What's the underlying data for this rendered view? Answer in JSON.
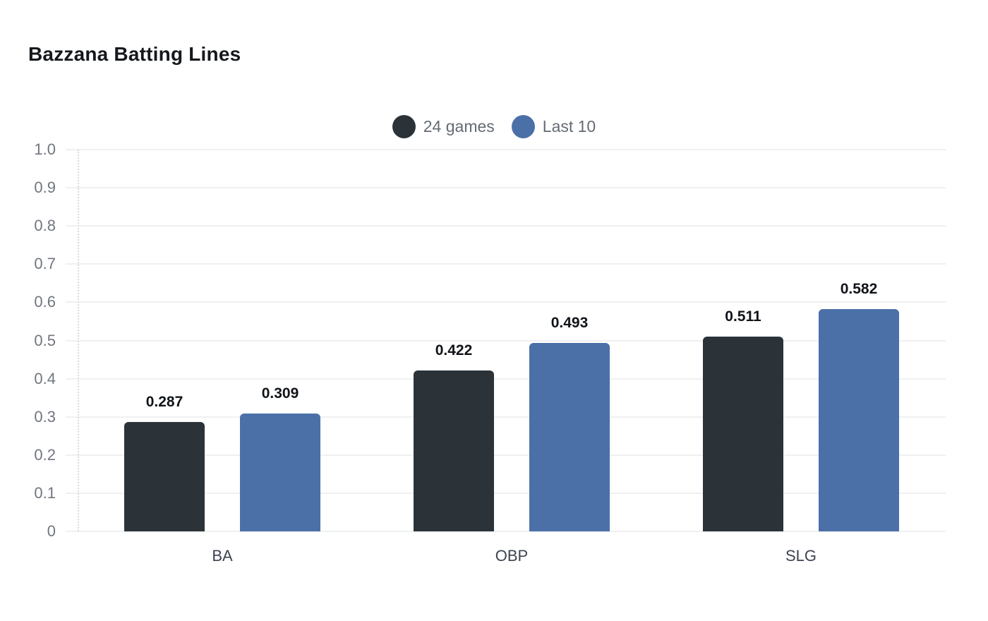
{
  "title": "Bazzana Batting Lines",
  "chart_data": {
    "type": "bar",
    "title": "Bazzana Batting Lines",
    "categories": [
      "BA",
      "OBP",
      "SLG"
    ],
    "series": [
      {
        "name": "24 games",
        "color": "#2b3339",
        "values": [
          0.287,
          0.422,
          0.511
        ]
      },
      {
        "name": "Last 10",
        "color": "#4b70a8",
        "values": [
          0.309,
          0.493,
          0.582
        ]
      }
    ],
    "value_labels": {
      "24 games": [
        "0.287",
        "0.422",
        "0.511"
      ],
      "Last 10": [
        "0.309",
        "0.493",
        "0.582"
      ]
    },
    "y_ticks": [
      "1.0",
      "0.9",
      "0.8",
      "0.7",
      "0.6",
      "0.5",
      "0.4",
      "0.3",
      "0.2",
      "0.1",
      "0"
    ],
    "ylim": [
      0,
      1.0
    ],
    "grid": true,
    "legend_position": "top-center",
    "background": "#ffffff",
    "colors": {
      "title_text": "#15181d",
      "tick_text": "#71767f",
      "category_text": "#3d4450",
      "legend_text": "#646b75",
      "value_label_text": "#101419",
      "gridline": "#eff0f1"
    }
  }
}
